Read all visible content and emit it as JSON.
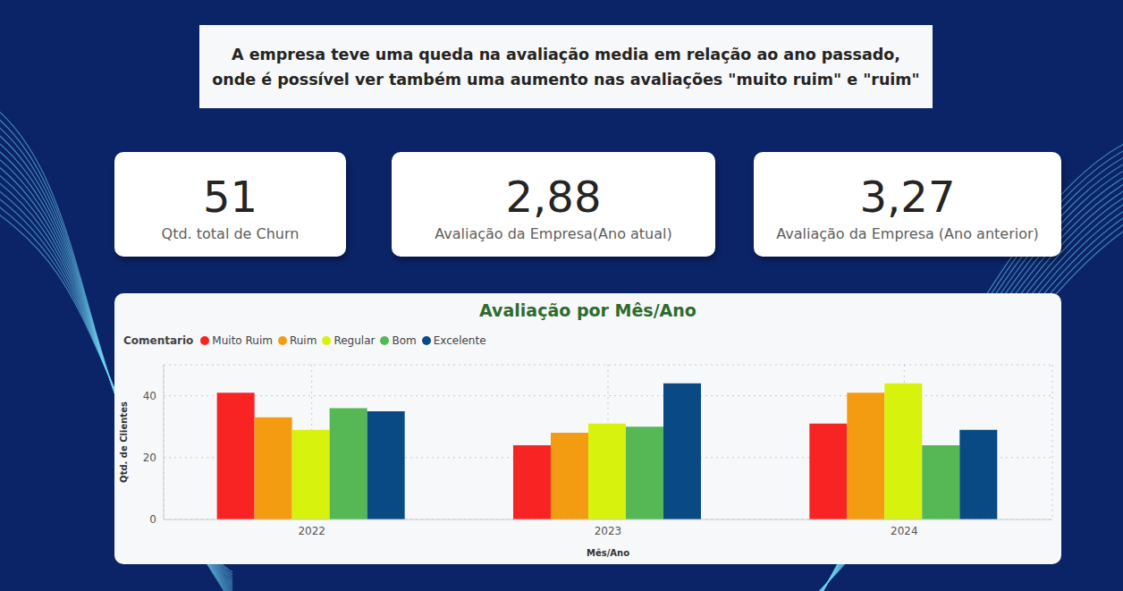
{
  "header": {
    "text": "A empresa teve uma queda na avaliação media em relação ao ano passado, onde é possível ver também uma aumento nas avaliações \"muito ruim\" e \"ruim\""
  },
  "cards": [
    {
      "value": "51",
      "label": "Qtd. total de Churn"
    },
    {
      "value": "2,88",
      "label": "Avaliação da Empresa(Ano atual)"
    },
    {
      "value": "3,27",
      "label": "Avaliação da Empresa (Ano anterior)"
    }
  ],
  "chart_data": {
    "type": "bar",
    "title": "Avaliação por Mês/Ano",
    "x_label": "Mês/Ano",
    "y_label": "Qtd. de Clientes",
    "legend_title": "Comentario",
    "legend": "top-left",
    "grid": true,
    "categories": [
      "2022",
      "2023",
      "2024"
    ],
    "series": [
      {
        "name": "Muito Ruim",
        "color": "#f82424",
        "values": [
          41,
          24,
          31
        ]
      },
      {
        "name": "Ruim",
        "color": "#f39c12",
        "values": [
          33,
          28,
          41
        ]
      },
      {
        "name": "Regular",
        "color": "#d6f20d",
        "values": [
          29,
          31,
          44
        ]
      },
      {
        "name": "Bom",
        "color": "#55b855",
        "values": [
          36,
          30,
          24
        ]
      },
      {
        "name": "Excelente",
        "color": "#0a4a84",
        "values": [
          35,
          44,
          29
        ]
      }
    ],
    "ylim": [
      0,
      50
    ],
    "yticks": [
      0,
      20,
      40
    ]
  }
}
